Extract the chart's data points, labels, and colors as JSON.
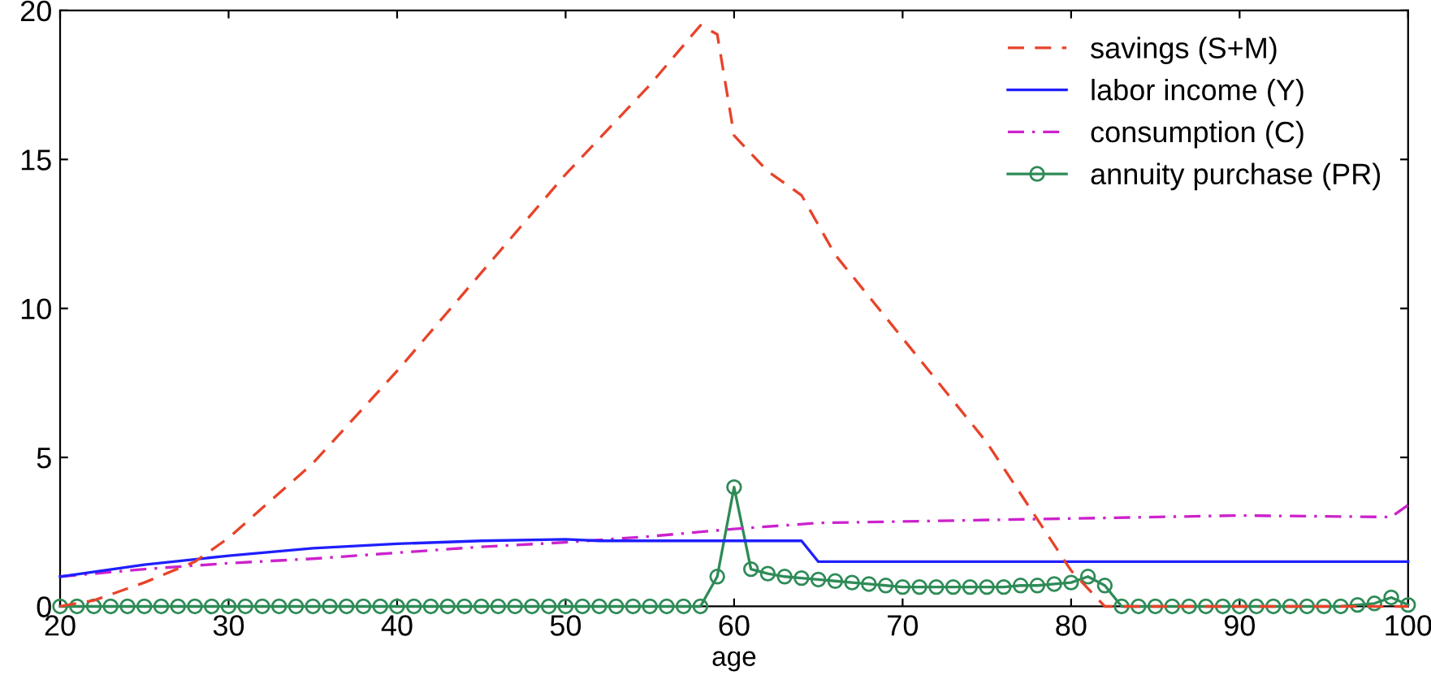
{
  "chart_data": {
    "type": "line",
    "xlabel": "age",
    "xlim": [
      20,
      100
    ],
    "ylim": [
      0,
      20
    ],
    "xticks": [
      20,
      30,
      40,
      50,
      60,
      70,
      80,
      90,
      100
    ],
    "yticks": [
      0,
      5,
      10,
      15,
      20
    ],
    "grid": false,
    "legend": "top right",
    "series": [
      {
        "name": "savings (S+M)",
        "color": "#e8432a",
        "line_style": "dashed",
        "marker": "none",
        "x": [
          20,
          22,
          25,
          28,
          30,
          35,
          40,
          45,
          50,
          55,
          58,
          59,
          60,
          62,
          64,
          66,
          70,
          75,
          80,
          82,
          85,
          90,
          95,
          100
        ],
        "values": [
          0,
          0.2,
          0.8,
          1.5,
          2.3,
          4.8,
          7.9,
          11.2,
          14.5,
          17.5,
          19.5,
          19.2,
          15.8,
          14.6,
          13.8,
          11.8,
          9.0,
          5.5,
          1.2,
          0,
          0,
          0,
          0,
          0
        ]
      },
      {
        "name": "labor income (Y)",
        "color": "#1f1fff",
        "line_style": "solid",
        "marker": "none",
        "x": [
          20,
          25,
          30,
          35,
          40,
          45,
          50,
          52,
          64,
          65,
          100
        ],
        "values": [
          1.0,
          1.4,
          1.7,
          1.95,
          2.1,
          2.2,
          2.25,
          2.2,
          2.2,
          1.5,
          1.5
        ]
      },
      {
        "name": "consumption (C)",
        "color": "#cc22cc",
        "line_style": "dashdot",
        "marker": "none",
        "x": [
          20,
          25,
          30,
          35,
          40,
          45,
          50,
          55,
          60,
          65,
          70,
          80,
          90,
          99,
          100
        ],
        "values": [
          1.0,
          1.25,
          1.45,
          1.6,
          1.8,
          2.0,
          2.15,
          2.35,
          2.6,
          2.8,
          2.85,
          2.95,
          3.05,
          3.0,
          3.4
        ]
      },
      {
        "name": "annuity purchase (PR)",
        "color": "#2e8b57",
        "line_style": "solid",
        "marker": "circle",
        "x": [
          20,
          21,
          22,
          23,
          24,
          25,
          26,
          27,
          28,
          29,
          30,
          31,
          32,
          33,
          34,
          35,
          36,
          37,
          38,
          39,
          40,
          41,
          42,
          43,
          44,
          45,
          46,
          47,
          48,
          49,
          50,
          51,
          52,
          53,
          54,
          55,
          56,
          57,
          58,
          59,
          60,
          61,
          62,
          63,
          64,
          65,
          66,
          67,
          68,
          69,
          70,
          71,
          72,
          73,
          74,
          75,
          76,
          77,
          78,
          79,
          80,
          81,
          82,
          83,
          84,
          85,
          86,
          87,
          88,
          89,
          90,
          91,
          92,
          93,
          94,
          95,
          96,
          97,
          98,
          99,
          100
        ],
        "values": [
          0,
          0,
          0,
          0,
          0,
          0,
          0,
          0,
          0,
          0,
          0,
          0,
          0,
          0,
          0,
          0,
          0,
          0,
          0,
          0,
          0,
          0,
          0,
          0,
          0,
          0,
          0,
          0,
          0,
          0,
          0,
          0,
          0,
          0,
          0,
          0,
          0,
          0,
          0,
          1.0,
          4.0,
          1.25,
          1.1,
          1.0,
          0.95,
          0.9,
          0.85,
          0.8,
          0.75,
          0.7,
          0.65,
          0.65,
          0.65,
          0.65,
          0.65,
          0.65,
          0.65,
          0.7,
          0.7,
          0.75,
          0.8,
          1.0,
          0.7,
          0,
          0,
          0,
          0,
          0,
          0,
          0,
          0,
          0,
          0,
          0,
          0,
          0,
          0,
          0.05,
          0.1,
          0.3,
          0.05
        ]
      }
    ]
  }
}
